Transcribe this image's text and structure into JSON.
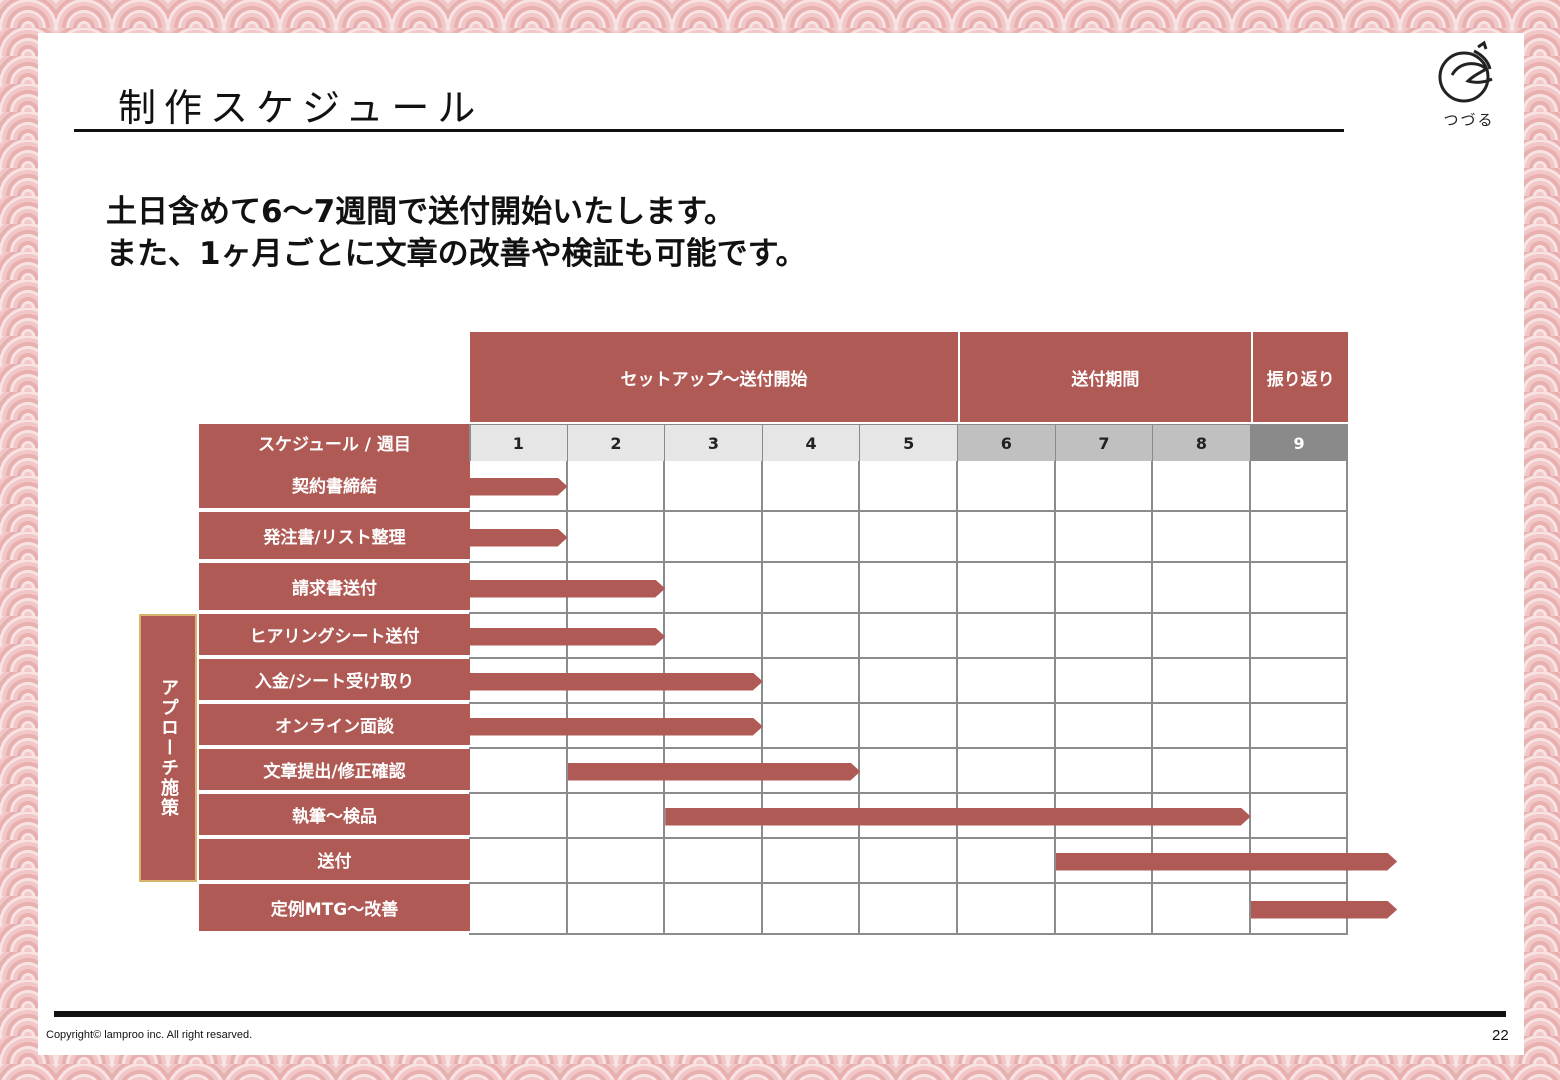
{
  "title": "制作スケジュール",
  "logo": {
    "name": "つづる"
  },
  "lead": {
    "line1": "土日含めて6〜7週間で送付開始いたします。",
    "line2": "また、1ヶ月ごとに文章の改善や検証も可能です。"
  },
  "schedule": {
    "phases": [
      {
        "label": "セットアップ〜送付開始",
        "start_week": 1,
        "end_week": 5
      },
      {
        "label": "送付期間",
        "start_week": 6,
        "end_week": 8
      },
      {
        "label": "振り返り",
        "start_week": 9,
        "end_week": 9
      }
    ],
    "corner_label": "スケジュール / 週目",
    "weeks": [
      "1",
      "2",
      "3",
      "4",
      "5",
      "6",
      "7",
      "8",
      "9"
    ],
    "week_colors": [
      "#e6e6e6",
      "#e6e6e6",
      "#e6e6e6",
      "#e6e6e6",
      "#e6e6e6",
      "#c0c0c0",
      "#c0c0c0",
      "#c0c0c0",
      "#8a8a8a"
    ],
    "side_group_label": "アプローチ施策",
    "tasks": [
      {
        "label": "契約書締結",
        "start": 0,
        "end": 1
      },
      {
        "label": "発注書/リスト整理",
        "start": 0,
        "end": 1
      },
      {
        "label": "請求書送付",
        "start": 0,
        "end": 2
      },
      {
        "label": "ヒアリングシート送付",
        "start": 0,
        "end": 2
      },
      {
        "label": "入金/シート受け取り",
        "start": 0,
        "end": 3
      },
      {
        "label": "オンライン面談",
        "start": 0,
        "end": 3
      },
      {
        "label": "文章提出/修正確認",
        "start": 1,
        "end": 4
      },
      {
        "label": "執筆〜検品",
        "start": 2,
        "end": 8
      },
      {
        "label": "送付",
        "start": 6,
        "end": 9.5
      },
      {
        "label": "定例MTG〜改善",
        "start": 8,
        "end": 9.5
      }
    ],
    "accent_color": "#b05a55"
  },
  "footer": {
    "copyright": "Copyright© lamproo inc. All right resarved.",
    "page": "22"
  }
}
